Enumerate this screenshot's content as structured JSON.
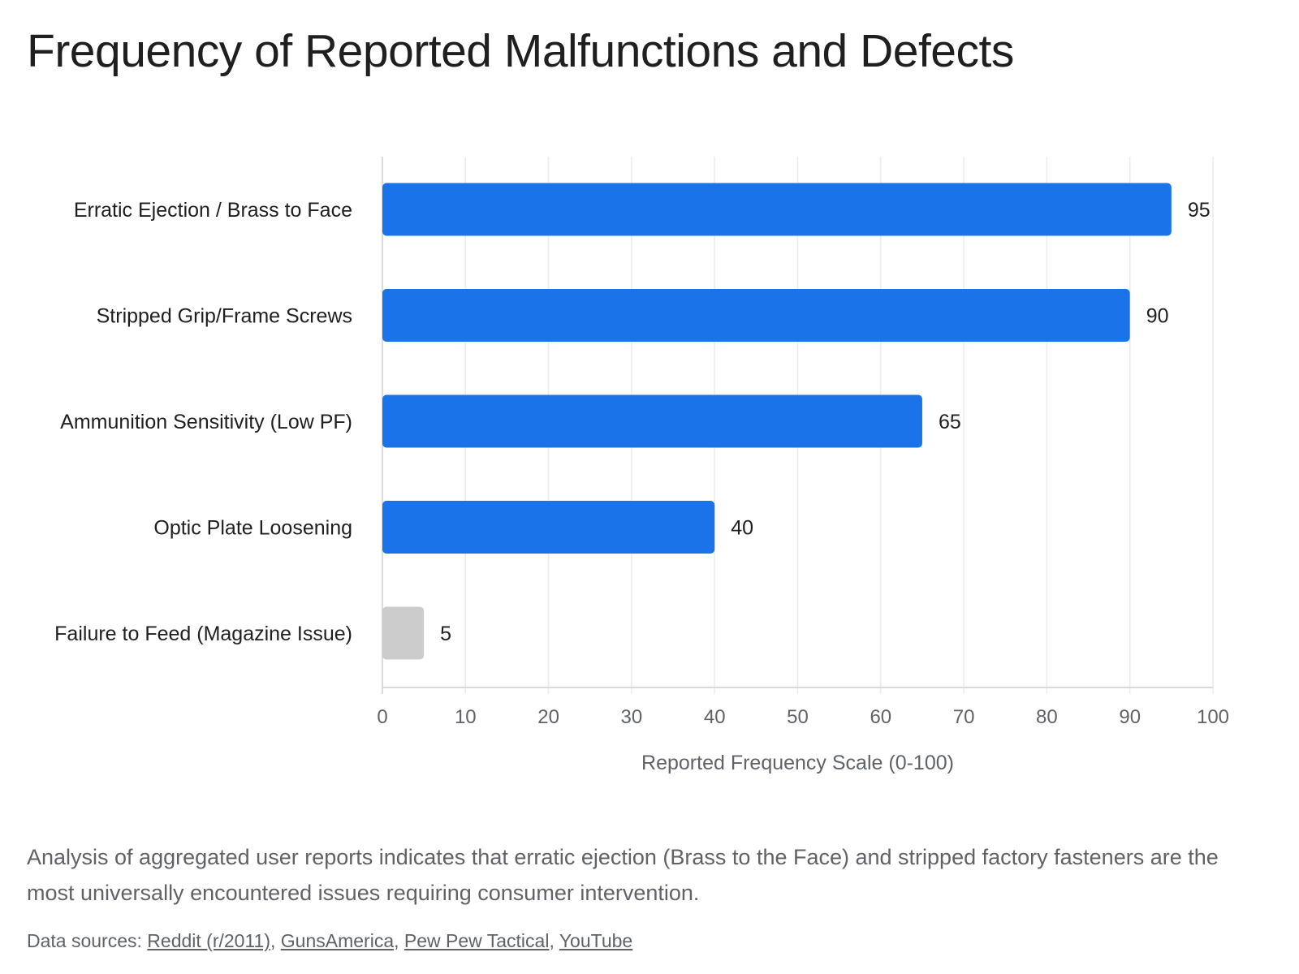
{
  "title": "Frequency of Reported Malfunctions and Defects",
  "chart_data": {
    "type": "bar",
    "orientation": "horizontal",
    "title": "Frequency of Reported Malfunctions and Defects",
    "categories": [
      "Erratic Ejection / Brass to Face",
      "Stripped Grip/Frame Screws",
      "Ammunition Sensitivity (Low PF)",
      "Optic Plate Loosening",
      "Failure to Feed (Magazine Issue)"
    ],
    "values": [
      95,
      90,
      65,
      40,
      5
    ],
    "data_labels": [
      "95",
      "90",
      "65",
      "40",
      "5"
    ],
    "bar_colors": [
      "#1a73e8",
      "#1a73e8",
      "#1a73e8",
      "#1a73e8",
      "#cccccc"
    ],
    "xlabel": "Reported Frequency Scale (0-100)",
    "ylabel": "",
    "xlim": [
      0,
      100
    ],
    "xticks": [
      "0",
      "10",
      "20",
      "30",
      "40",
      "50",
      "60",
      "70",
      "80",
      "90",
      "100"
    ],
    "grid": true
  },
  "summary": "Analysis of aggregated user reports indicates that erratic ejection (Brass to the Face) and stripped factory fasteners are the most universally encountered issues requiring consumer intervention.",
  "sources": {
    "label": "Data sources: ",
    "links": [
      "Reddit (r/2011)",
      "GunsAmerica",
      "Pew Pew Tactical",
      "YouTube"
    ]
  }
}
